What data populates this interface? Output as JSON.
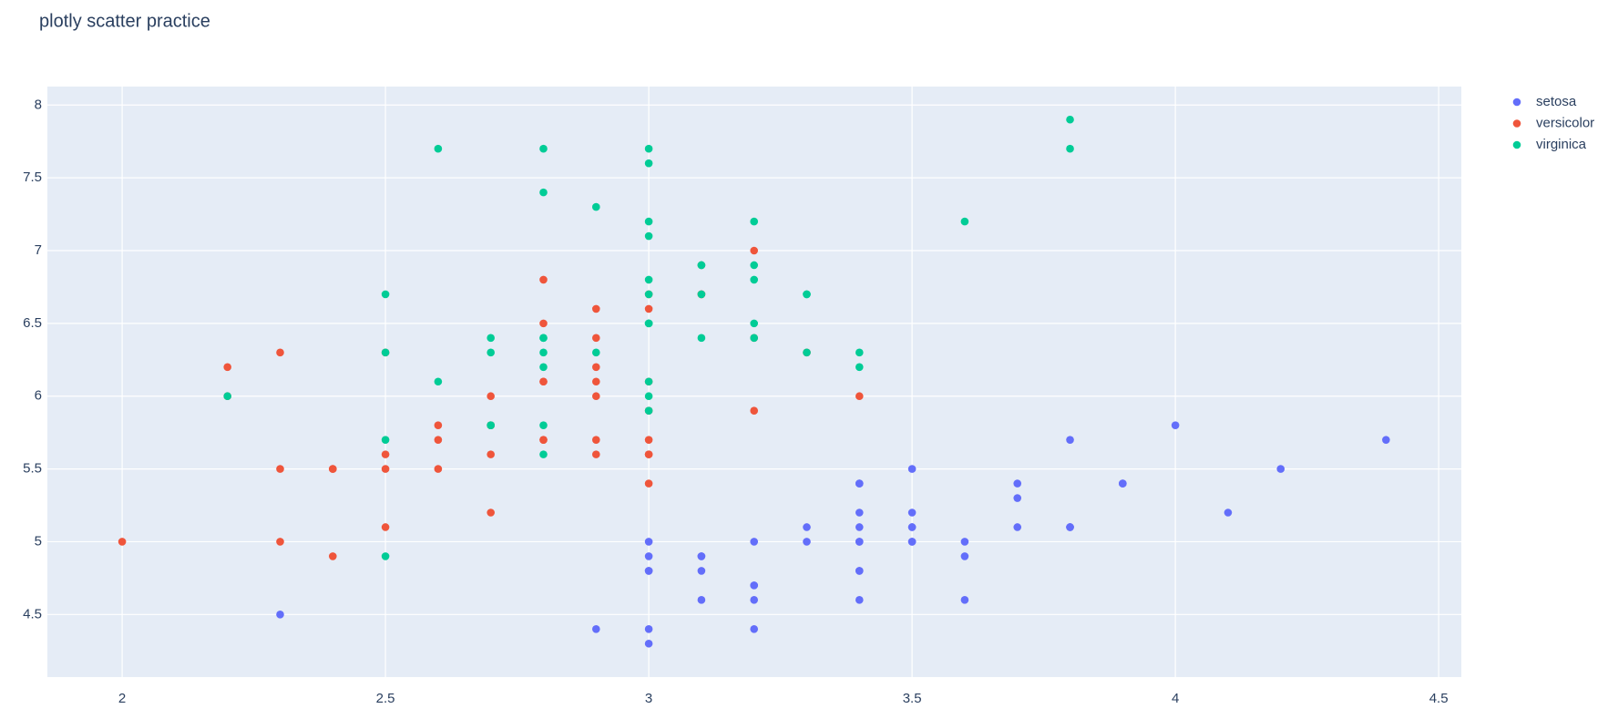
{
  "chart_data": {
    "type": "scatter",
    "title": "plotly scatter practice",
    "xlim": [
      1.858,
      4.543
    ],
    "ylim": [
      4.07,
      8.127
    ],
    "xticks": [
      2,
      2.5,
      3,
      3.5,
      4,
      4.5
    ],
    "yticks": [
      4.5,
      5,
      5.5,
      6,
      6.5,
      7,
      7.5,
      8
    ],
    "grid": true,
    "legend": "top-right",
    "series": [
      {
        "name": "setosa",
        "color": "#636efa",
        "x": [
          3.5,
          3.0,
          3.2,
          3.1,
          3.6,
          3.9,
          3.4,
          3.4,
          2.9,
          3.1,
          3.7,
          3.4,
          3.0,
          3.0,
          4.0,
          4.4,
          3.9,
          3.5,
          3.8,
          3.8,
          3.4,
          3.7,
          3.6,
          3.3,
          3.4,
          3.0,
          3.4,
          3.5,
          3.4,
          3.2,
          3.1,
          3.4,
          4.1,
          4.2,
          3.1,
          3.2,
          3.5,
          3.6,
          3.0,
          3.4,
          3.5,
          2.3,
          3.2,
          3.5,
          3.8,
          3.0,
          3.8,
          3.2,
          3.7,
          3.3
        ],
        "values": [
          5.1,
          4.9,
          4.7,
          4.6,
          5.0,
          5.4,
          4.6,
          5.0,
          4.4,
          4.9,
          5.4,
          4.8,
          4.8,
          4.3,
          5.8,
          5.7,
          5.4,
          5.1,
          5.7,
          5.1,
          5.4,
          5.1,
          4.6,
          5.1,
          4.8,
          5.0,
          5.0,
          5.2,
          5.2,
          4.7,
          4.8,
          5.4,
          5.2,
          5.5,
          4.9,
          5.0,
          5.5,
          4.9,
          4.4,
          5.1,
          5.0,
          4.5,
          4.4,
          5.0,
          5.1,
          4.8,
          5.1,
          4.6,
          5.3,
          5.0
        ]
      },
      {
        "name": "versicolor",
        "color": "#EF553B",
        "x": [
          3.2,
          3.2,
          3.1,
          2.3,
          2.8,
          2.8,
          3.3,
          2.4,
          2.9,
          2.7,
          2.0,
          3.0,
          2.2,
          2.9,
          2.9,
          3.1,
          3.0,
          2.7,
          2.2,
          2.5,
          3.2,
          2.8,
          2.5,
          2.8,
          2.9,
          3.0,
          2.8,
          3.0,
          2.9,
          2.6,
          2.4,
          2.4,
          2.7,
          2.7,
          3.0,
          3.4,
          3.1,
          2.3,
          3.0,
          2.5,
          2.6,
          3.0,
          2.6,
          2.3,
          2.7,
          3.0,
          2.9,
          2.9,
          2.5,
          2.8
        ],
        "values": [
          7.0,
          6.4,
          6.9,
          5.5,
          6.5,
          5.7,
          6.3,
          4.9,
          6.6,
          5.2,
          5.0,
          5.9,
          6.0,
          6.1,
          5.6,
          6.7,
          5.6,
          5.8,
          6.2,
          5.6,
          5.9,
          6.1,
          6.3,
          6.1,
          6.4,
          6.6,
          6.8,
          6.7,
          6.0,
          5.7,
          5.5,
          5.5,
          5.8,
          6.0,
          5.4,
          6.0,
          6.7,
          6.3,
          5.6,
          5.5,
          5.5,
          6.1,
          5.8,
          5.0,
          5.6,
          5.7,
          5.7,
          6.2,
          5.1,
          5.7
        ]
      },
      {
        "name": "virginica",
        "color": "#00cc96",
        "x": [
          3.3,
          2.7,
          3.0,
          2.9,
          3.0,
          3.0,
          2.5,
          2.9,
          2.5,
          3.6,
          3.2,
          2.7,
          3.0,
          2.5,
          2.8,
          3.2,
          3.0,
          3.8,
          2.6,
          2.2,
          3.2,
          2.8,
          2.8,
          2.7,
          3.3,
          3.2,
          2.8,
          3.0,
          2.8,
          3.0,
          2.8,
          3.8,
          2.8,
          2.8,
          2.6,
          3.0,
          3.4,
          3.1,
          3.0,
          3.1,
          3.1,
          3.1,
          2.7,
          3.2,
          3.3,
          3.0,
          2.5,
          3.0,
          3.4,
          3.0
        ],
        "values": [
          6.3,
          5.8,
          7.1,
          6.3,
          6.5,
          7.6,
          4.9,
          7.3,
          6.7,
          7.2,
          6.5,
          6.4,
          6.8,
          5.7,
          5.8,
          6.4,
          6.5,
          7.7,
          7.7,
          6.0,
          6.9,
          5.6,
          7.7,
          6.3,
          6.7,
          7.2,
          6.2,
          6.1,
          6.4,
          7.2,
          7.4,
          7.9,
          6.4,
          6.3,
          6.1,
          7.7,
          6.3,
          6.4,
          6.0,
          6.9,
          6.7,
          6.9,
          5.8,
          6.8,
          6.7,
          6.7,
          6.3,
          6.5,
          6.2,
          5.9
        ]
      }
    ]
  }
}
